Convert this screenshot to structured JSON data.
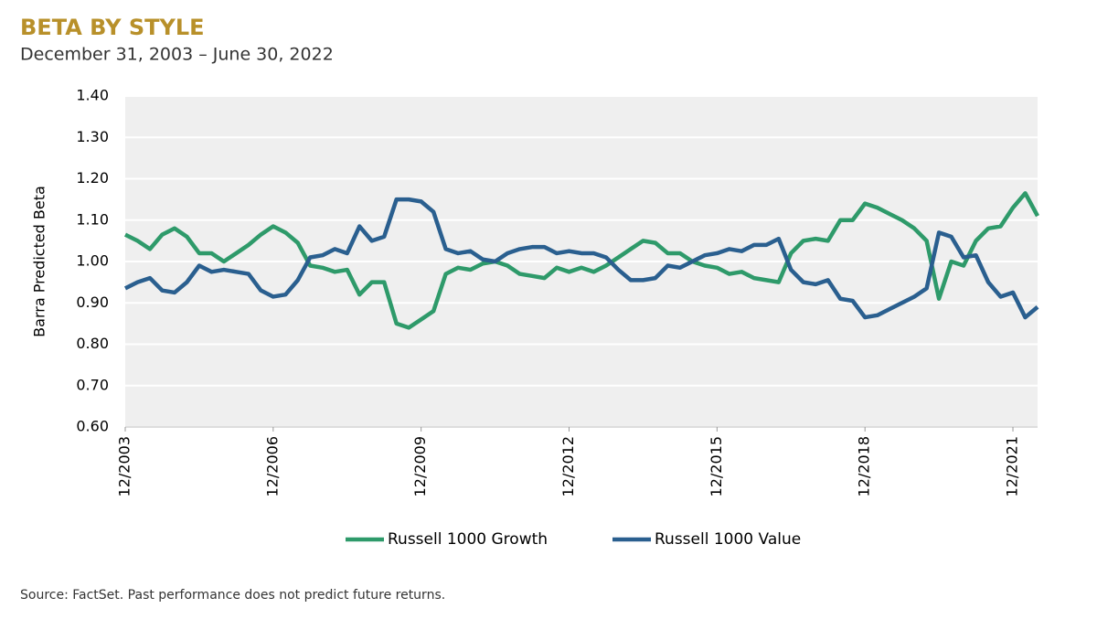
{
  "chart_data": {
    "type": "line",
    "title": "BETA BY STYLE",
    "subtitle": "December 31, 2003 – June 30, 2022",
    "y_label": "Barra Predicted Beta",
    "source": "Source: FactSet. Past performance does not predict future returns.",
    "categories": [
      "12/2003",
      "3/2004",
      "6/2004",
      "9/2004",
      "12/2004",
      "3/2005",
      "6/2005",
      "9/2005",
      "12/2005",
      "3/2006",
      "6/2006",
      "9/2006",
      "12/2006",
      "3/2007",
      "6/2007",
      "9/2007",
      "12/2007",
      "3/2008",
      "6/2008",
      "9/2008",
      "12/2008",
      "3/2009",
      "6/2009",
      "9/2009",
      "12/2009",
      "3/2010",
      "6/2010",
      "9/2010",
      "12/2010",
      "3/2011",
      "6/2011",
      "9/2011",
      "12/2011",
      "3/2012",
      "6/2012",
      "9/2012",
      "12/2012",
      "3/2013",
      "6/2013",
      "9/2013",
      "12/2013",
      "3/2014",
      "6/2014",
      "9/2014",
      "12/2014",
      "3/2015",
      "6/2015",
      "9/2015",
      "12/2015",
      "3/2016",
      "6/2016",
      "9/2016",
      "12/2016",
      "3/2017",
      "6/2017",
      "9/2017",
      "12/2017",
      "3/2018",
      "6/2018",
      "9/2018",
      "12/2018",
      "3/2019",
      "6/2019",
      "9/2019",
      "12/2019",
      "3/2020",
      "6/2020",
      "9/2020",
      "12/2020",
      "3/2021",
      "6/2021",
      "9/2021",
      "12/2021",
      "3/2022",
      "6/2022"
    ],
    "xticks": [
      "12/2003",
      "12/2006",
      "12/2009",
      "12/2012",
      "12/2015",
      "12/2018",
      "12/2021"
    ],
    "series": [
      {
        "name": "Russell 1000 Growth",
        "color": "#2e9a6a",
        "values": [
          1.065,
          1.05,
          1.03,
          1.065,
          1.08,
          1.06,
          1.02,
          1.02,
          1.0,
          1.02,
          1.04,
          1.065,
          1.085,
          1.07,
          1.045,
          0.99,
          0.985,
          0.975,
          0.98,
          0.92,
          0.95,
          0.95,
          0.85,
          0.84,
          0.86,
          0.88,
          0.97,
          0.985,
          0.98,
          0.995,
          1.0,
          0.99,
          0.97,
          0.965,
          0.96,
          0.985,
          0.975,
          0.985,
          0.975,
          0.99,
          1.01,
          1.03,
          1.05,
          1.045,
          1.02,
          1.02,
          1.0,
          0.99,
          0.985,
          0.97,
          0.975,
          0.96,
          0.955,
          0.95,
          1.02,
          1.05,
          1.055,
          1.05,
          1.1,
          1.1,
          1.14,
          1.13,
          1.115,
          1.1,
          1.08,
          1.05,
          0.91,
          1.0,
          0.99,
          1.05,
          1.08,
          1.085,
          1.13,
          1.165,
          1.11
        ]
      },
      {
        "name": "Russell 1000 Value",
        "color": "#2a5f8f",
        "values": [
          0.935,
          0.95,
          0.96,
          0.93,
          0.925,
          0.95,
          0.99,
          0.975,
          0.98,
          0.975,
          0.97,
          0.93,
          0.915,
          0.92,
          0.955,
          1.01,
          1.015,
          1.03,
          1.02,
          1.085,
          1.05,
          1.06,
          1.15,
          1.15,
          1.145,
          1.12,
          1.03,
          1.02,
          1.025,
          1.005,
          1.0,
          1.02,
          1.03,
          1.035,
          1.035,
          1.02,
          1.025,
          1.02,
          1.02,
          1.01,
          0.98,
          0.955,
          0.955,
          0.96,
          0.99,
          0.985,
          1.0,
          1.015,
          1.02,
          1.03,
          1.025,
          1.04,
          1.04,
          1.055,
          0.98,
          0.95,
          0.945,
          0.955,
          0.91,
          0.905,
          0.865,
          0.87,
          0.885,
          0.9,
          0.915,
          0.935,
          1.07,
          1.06,
          1.01,
          1.015,
          0.95,
          0.915,
          0.925,
          0.865,
          0.89
        ]
      }
    ],
    "ylim": [
      0.6,
      1.4
    ],
    "yticks": [
      {
        "value": 0.6,
        "label": "0.60"
      },
      {
        "value": 0.7,
        "label": "0.70"
      },
      {
        "value": 0.8,
        "label": "0.80"
      },
      {
        "value": 0.9,
        "label": "0.90"
      },
      {
        "value": 1.0,
        "label": "1.00"
      },
      {
        "value": 1.1,
        "label": "1.10"
      },
      {
        "value": 1.2,
        "label": "1.20"
      },
      {
        "value": 1.3,
        "label": "1.30"
      },
      {
        "value": 1.4,
        "label": "1.40"
      }
    ],
    "grid": true,
    "legend": "bottom"
  }
}
